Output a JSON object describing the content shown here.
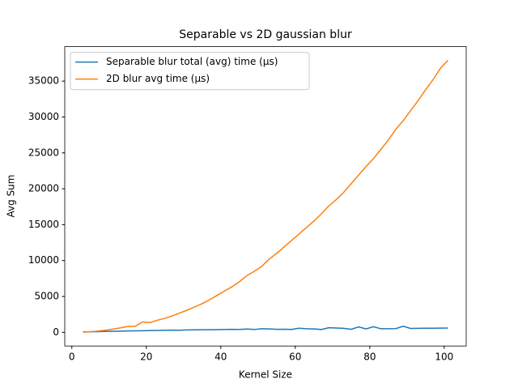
{
  "chart_data": {
    "type": "line",
    "title": "Separable vs 2D gaussian blur",
    "x_label": "Kernel Size",
    "y_label": "Avg Sum",
    "x": [
      3,
      5,
      7,
      9,
      11,
      13,
      15,
      17,
      19,
      21,
      23,
      25,
      27,
      29,
      31,
      33,
      35,
      37,
      39,
      41,
      43,
      45,
      47,
      49,
      51,
      53,
      55,
      57,
      59,
      61,
      63,
      65,
      67,
      69,
      71,
      73,
      75,
      77,
      79,
      81,
      83,
      85,
      87,
      89,
      91,
      93,
      95,
      97,
      99,
      101
    ],
    "series": [
      {
        "name": "Separable blur total (avg) time (µs)",
        "color": "#1f77b4",
        "values": [
          50,
          80,
          100,
          130,
          150,
          170,
          190,
          210,
          230,
          250,
          270,
          290,
          310,
          300,
          330,
          350,
          360,
          370,
          380,
          400,
          420,
          400,
          460,
          400,
          500,
          480,
          420,
          430,
          410,
          580,
          500,
          480,
          400,
          650,
          600,
          560,
          420,
          750,
          480,
          780,
          500,
          500,
          520,
          850,
          540,
          560,
          570,
          580,
          590,
          600
        ]
      },
      {
        "name": "2D blur avg time (µs)",
        "color": "#ff7f0e",
        "values": [
          30,
          90,
          180,
          300,
          450,
          620,
          820,
          850,
          1450,
          1350,
          1700,
          1950,
          2300,
          2700,
          3100,
          3550,
          4000,
          4550,
          5150,
          5750,
          6350,
          7050,
          7900,
          8500,
          9200,
          10200,
          11000,
          11900,
          12800,
          13700,
          14600,
          15500,
          16500,
          17600,
          18500,
          19500,
          20700,
          21900,
          23100,
          24200,
          25500,
          26800,
          28300,
          29500,
          30900,
          32300,
          33800,
          35200,
          36800,
          37900
        ]
      }
    ],
    "xlim": [
      -1.9,
      105.9
    ],
    "ylim": [
      -1900,
      39800
    ],
    "xticks": [
      0,
      20,
      40,
      60,
      80,
      100
    ],
    "yticks": [
      0,
      5000,
      10000,
      15000,
      20000,
      25000,
      30000,
      35000
    ],
    "legend": "upper left",
    "grid": false
  }
}
